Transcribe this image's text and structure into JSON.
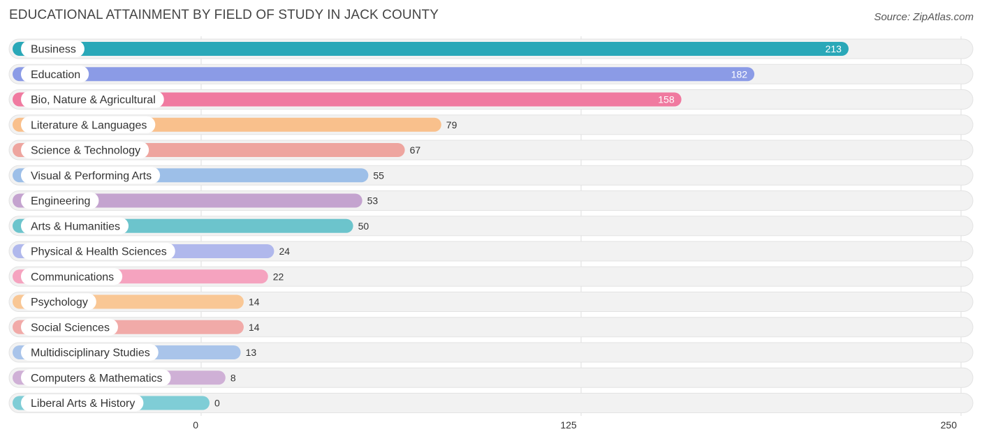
{
  "header": {
    "title": "EDUCATIONAL ATTAINMENT BY FIELD OF STUDY IN JACK COUNTY",
    "source": "Source: ZipAtlas.com"
  },
  "chart_data": {
    "type": "bar",
    "orientation": "horizontal",
    "title": "EDUCATIONAL ATTAINMENT BY FIELD OF STUDY IN JACK COUNTY",
    "xlabel": "",
    "ylabel": "",
    "xlim": [
      0,
      250
    ],
    "ticks": [
      0,
      125,
      250
    ],
    "tick_labels": [
      "0",
      "125",
      "250"
    ],
    "grid": true,
    "categories": [
      "Business",
      "Education",
      "Bio, Nature & Agricultural",
      "Literature & Languages",
      "Science & Technology",
      "Visual & Performing Arts",
      "Engineering",
      "Arts & Humanities",
      "Physical & Health Sciences",
      "Communications",
      "Psychology",
      "Social Sciences",
      "Multidisciplinary Studies",
      "Computers & Mathematics",
      "Liberal Arts & History"
    ],
    "values": [
      213,
      182,
      158,
      79,
      67,
      55,
      53,
      50,
      24,
      22,
      14,
      14,
      13,
      8,
      0
    ],
    "value_labels": [
      "213",
      "182",
      "158",
      "79",
      "67",
      "55",
      "53",
      "50",
      "24",
      "22",
      "14",
      "14",
      "13",
      "8",
      "0"
    ],
    "colors": [
      "#2aa8b8",
      "#8b9be6",
      "#f07aa0",
      "#f9c08c",
      "#eea59f",
      "#9dbfe8",
      "#c4a3cf",
      "#6cc4cc",
      "#b0b8ec",
      "#f5a3bf",
      "#f9c795",
      "#f1aaa8",
      "#a9c4ea",
      "#cfb0d6",
      "#7fcdd6"
    ]
  }
}
